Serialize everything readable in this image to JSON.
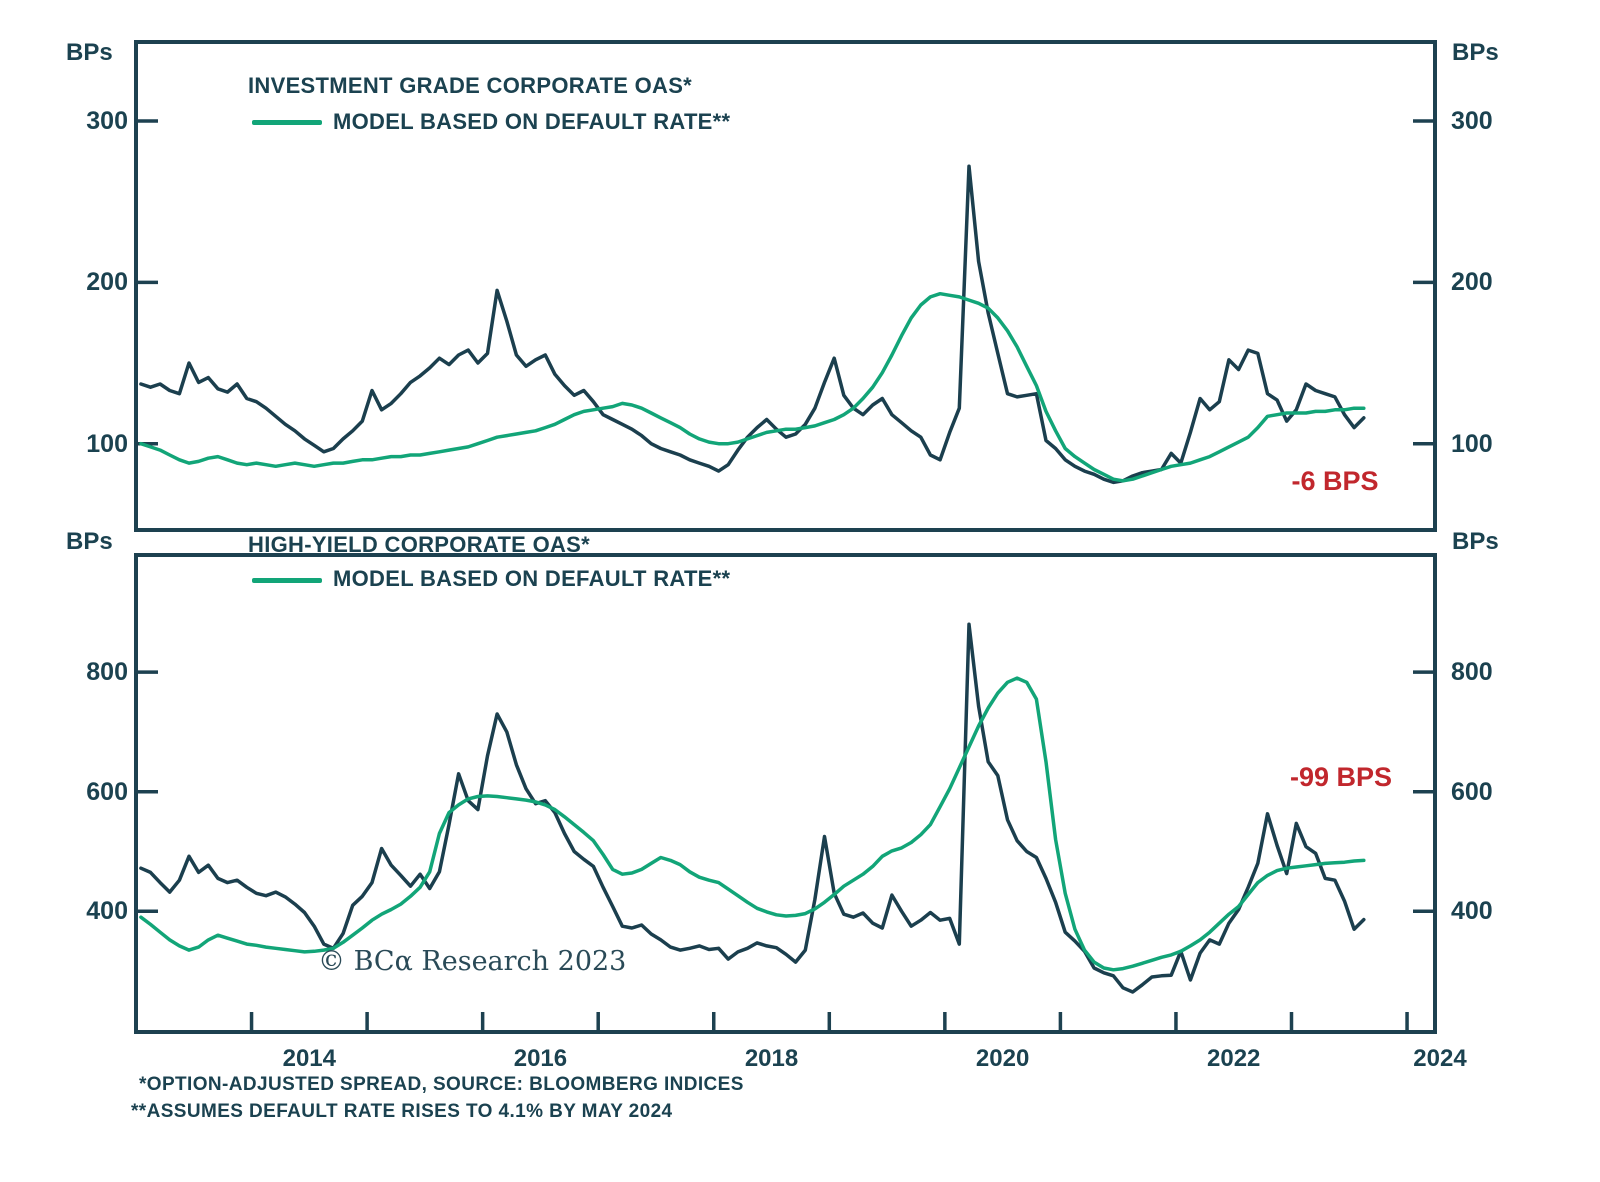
{
  "colors": {
    "navy": "#1d4150",
    "line_dark": "#1b3f4e",
    "line_green": "#12a578",
    "red": "#c1272d"
  },
  "axis": {
    "bps_label": "BPs",
    "tick_years": [
      2014,
      2015,
      2016,
      2017,
      2018,
      2019,
      2020,
      2021,
      2022,
      2023,
      2024
    ],
    "label_years": [
      "2014",
      "2016",
      "2018",
      "2020",
      "2022",
      "2024"
    ],
    "xlim": [
      2013.0,
      2024.25
    ]
  },
  "footnotes": [
    "*OPTION-ADJUSTED SPREAD, SOURCE: BLOOMBERG INDICES",
    "**ASSUMES DEFAULT RATE RISES TO 4.1% BY MAY 2024"
  ],
  "copyright": "© BCα Research 2023",
  "chart_data": [
    {
      "type": "line",
      "panel": "investment-grade",
      "title": "INVESTMENT GRADE CORPORATE OAS*",
      "legend_model": "MODEL BASED ON DEFAULT RATE**",
      "ylabel": "BPs",
      "yticks": [
        100,
        200,
        300
      ],
      "ylim": [
        46.5,
        349
      ],
      "annotation": {
        "text": "-6 BPS"
      },
      "x_start": 2013.042,
      "x_step": 0.083333,
      "series": [
        {
          "name": "Investment Grade Corporate OAS",
          "color_key": "line_dark",
          "values": [
            137,
            135,
            137,
            133,
            131,
            150,
            138,
            141,
            134,
            132,
            137,
            128,
            126,
            122,
            117,
            112,
            108,
            103,
            99,
            95,
            97,
            103,
            108,
            114,
            133,
            121,
            125,
            131,
            138,
            142,
            147,
            153,
            149,
            155,
            158,
            150,
            156,
            195,
            176,
            155,
            148,
            152,
            155,
            143,
            136,
            130,
            133,
            126,
            118,
            115,
            112,
            109,
            105,
            100,
            97,
            95,
            93,
            90,
            88,
            86,
            83,
            87,
            96,
            104,
            110,
            115,
            109,
            104,
            106,
            112,
            122,
            138,
            153,
            130,
            122,
            118,
            124,
            128,
            118,
            113,
            108,
            104,
            93,
            90,
            107,
            122,
            272,
            213,
            181,
            156,
            131,
            129,
            130,
            131,
            102,
            97,
            90,
            86,
            83,
            81,
            78,
            76,
            77,
            80,
            82,
            83,
            84,
            94,
            88,
            107,
            128,
            121,
            126,
            152,
            146,
            158,
            156,
            131,
            127,
            114,
            121,
            137,
            133,
            131,
            129,
            118,
            110,
            116
          ]
        },
        {
          "name": "Model based on default rate",
          "color_key": "line_green",
          "values": [
            100,
            98,
            96,
            93,
            90,
            88,
            89,
            91,
            92,
            90,
            88,
            87,
            88,
            87,
            86,
            87,
            88,
            87,
            86,
            87,
            88,
            88,
            89,
            90,
            90,
            91,
            92,
            92,
            93,
            93,
            94,
            95,
            96,
            97,
            98,
            100,
            102,
            104,
            105,
            106,
            107,
            108,
            110,
            112,
            115,
            118,
            120,
            121,
            122,
            123,
            125,
            124,
            122,
            119,
            116,
            113,
            110,
            106,
            103,
            101,
            100,
            100,
            101,
            103,
            105,
            107,
            108,
            109,
            109,
            110,
            111,
            113,
            115,
            118,
            122,
            128,
            135,
            144,
            155,
            167,
            178,
            186,
            191,
            193,
            192,
            191,
            189,
            187,
            184,
            178,
            170,
            160,
            148,
            136,
            120,
            108,
            97,
            92,
            88,
            84,
            81,
            78,
            77,
            78,
            80,
            82,
            84,
            86,
            87,
            88,
            90,
            92,
            95,
            98,
            101,
            104,
            110,
            117,
            118,
            119,
            119,
            119,
            120,
            120,
            121,
            121,
            122,
            122
          ]
        }
      ]
    },
    {
      "type": "line",
      "panel": "high-yield",
      "title": "HIGH-YIELD CORPORATE OAS*",
      "legend_model": "MODEL BASED ON DEFAULT RATE**",
      "ylabel": "BPs",
      "yticks": [
        400,
        600,
        800
      ],
      "ylim": [
        198,
        996
      ],
      "annotation": {
        "text": "-99 BPS"
      },
      "x_start": 2013.042,
      "x_step": 0.083333,
      "series": [
        {
          "name": "High-Yield Corporate OAS",
          "color_key": "line_dark",
          "values": [
            472,
            465,
            448,
            432,
            452,
            492,
            465,
            477,
            455,
            448,
            452,
            440,
            430,
            426,
            432,
            424,
            412,
            398,
            375,
            345,
            338,
            363,
            410,
            425,
            448,
            505,
            477,
            460,
            442,
            462,
            438,
            466,
            545,
            630,
            585,
            570,
            660,
            730,
            700,
            645,
            605,
            580,
            585,
            565,
            530,
            500,
            487,
            475,
            440,
            408,
            375,
            372,
            377,
            362,
            352,
            340,
            335,
            338,
            342,
            336,
            338,
            320,
            332,
            338,
            347,
            342,
            339,
            328,
            315,
            335,
            420,
            525,
            430,
            395,
            390,
            397,
            380,
            372,
            427,
            400,
            375,
            385,
            398,
            385,
            388,
            345,
            880,
            743,
            650,
            627,
            553,
            518,
            500,
            490,
            455,
            415,
            365,
            350,
            333,
            305,
            297,
            292,
            272,
            265,
            277,
            290,
            292,
            293,
            333,
            285,
            330,
            352,
            345,
            380,
            403,
            440,
            480,
            563,
            510,
            463,
            547,
            508,
            497,
            455,
            452,
            417,
            370,
            386
          ]
        },
        {
          "name": "Model based on default rate",
          "color_key": "line_green",
          "values": [
            390,
            378,
            365,
            352,
            342,
            335,
            340,
            352,
            360,
            355,
            350,
            345,
            343,
            340,
            338,
            336,
            334,
            332,
            333,
            335,
            338,
            348,
            360,
            372,
            385,
            395,
            403,
            412,
            425,
            440,
            466,
            530,
            565,
            578,
            588,
            592,
            593,
            592,
            590,
            588,
            586,
            583,
            578,
            570,
            558,
            545,
            532,
            518,
            495,
            470,
            462,
            464,
            470,
            480,
            490,
            485,
            478,
            466,
            457,
            452,
            448,
            437,
            426,
            415,
            405,
            399,
            394,
            392,
            393,
            396,
            404,
            415,
            428,
            442,
            452,
            462,
            475,
            492,
            501,
            506,
            515,
            528,
            545,
            575,
            605,
            640,
            675,
            710,
            740,
            765,
            783,
            790,
            783,
            755,
            650,
            520,
            430,
            370,
            335,
            315,
            305,
            302,
            304,
            308,
            313,
            318,
            323,
            327,
            333,
            342,
            352,
            365,
            380,
            395,
            408,
            428,
            448,
            460,
            468,
            472,
            474,
            476,
            478,
            480,
            481,
            482,
            484,
            485
          ]
        }
      ]
    }
  ]
}
